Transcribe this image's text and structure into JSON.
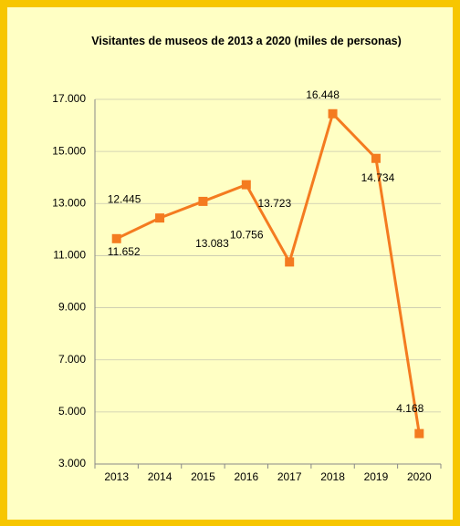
{
  "chart_data": {
    "type": "line",
    "title": "Visitantes de museos de 2013 a 2020 (miles de personas)",
    "categories": [
      "2013",
      "2014",
      "2015",
      "2016",
      "2017",
      "2018",
      "2019",
      "2020"
    ],
    "series": [
      {
        "name": "Visitantes",
        "color": "#f47b20",
        "values": [
          11652,
          12445,
          13083,
          13723,
          10756,
          16448,
          14734,
          4168
        ],
        "value_labels": [
          "11.652",
          "12.445",
          "13.083",
          "13.723",
          "10.756",
          "16.448",
          "14.734",
          "4.168"
        ]
      }
    ],
    "ylim": [
      3000,
      17000
    ],
    "yticks": [
      {
        "value": 3000,
        "label": "3.000"
      },
      {
        "value": 5000,
        "label": "5.000"
      },
      {
        "value": 7000,
        "label": "7.000"
      },
      {
        "value": 9000,
        "label": "9.000"
      },
      {
        "value": 11000,
        "label": "11.000"
      },
      {
        "value": 13000,
        "label": "13.000"
      },
      {
        "value": 15000,
        "label": "15.000"
      },
      {
        "value": 17000,
        "label": "17.000"
      }
    ],
    "grid": true
  }
}
